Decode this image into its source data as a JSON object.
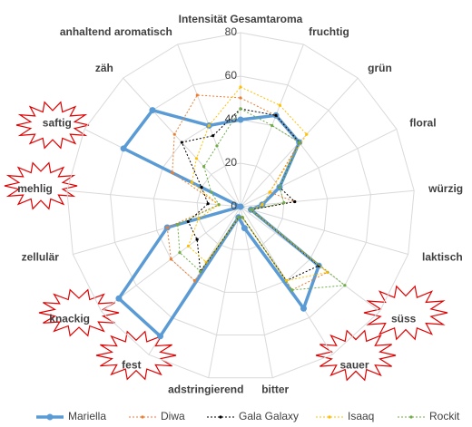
{
  "chart_data": {
    "type": "radar",
    "categories": [
      "Intensität Gesamtaroma",
      "fruchtig",
      "grün",
      "floral",
      "würzig",
      "laktisch",
      "süss",
      "sauer",
      "bitter",
      "adstringierend",
      "fest",
      "knackig",
      "zellulär",
      "mehlig",
      "saftig",
      "zäh",
      "anhaltend aromatisch"
    ],
    "ylim": [
      0,
      80
    ],
    "yticks": [
      0,
      20,
      40,
      60,
      80
    ],
    "grid": true,
    "legend": "bottom",
    "series": [
      {
        "name": "Mariella",
        "color": "#5b9bd5",
        "values": [
          40,
          45,
          40,
          20,
          10,
          5,
          45,
          55,
          10,
          5,
          70,
          70,
          35,
          0,
          60,
          60,
          40
        ]
      },
      {
        "name": "Diwa",
        "color": "#ed7d31",
        "values": [
          50,
          45,
          40,
          15,
          25,
          5,
          50,
          45,
          5,
          5,
          40,
          40,
          35,
          10,
          35,
          45,
          55
        ]
      },
      {
        "name": "Gala Galaxy",
        "color": "#000000",
        "values": [
          45,
          45,
          40,
          20,
          25,
          5,
          45,
          40,
          5,
          5,
          35,
          25,
          25,
          15,
          20,
          40,
          35
        ]
      },
      {
        "name": "Isaaq",
        "color": "#ffc000",
        "values": [
          55,
          50,
          45,
          15,
          10,
          5,
          50,
          40,
          5,
          5,
          30,
          30,
          20,
          10,
          25,
          30,
          40
        ]
      },
      {
        "name": "Rockit",
        "color": "#70ad47",
        "values": [
          45,
          40,
          40,
          20,
          20,
          5,
          60,
          45,
          5,
          5,
          35,
          35,
          30,
          10,
          15,
          25,
          30
        ]
      }
    ]
  }
}
